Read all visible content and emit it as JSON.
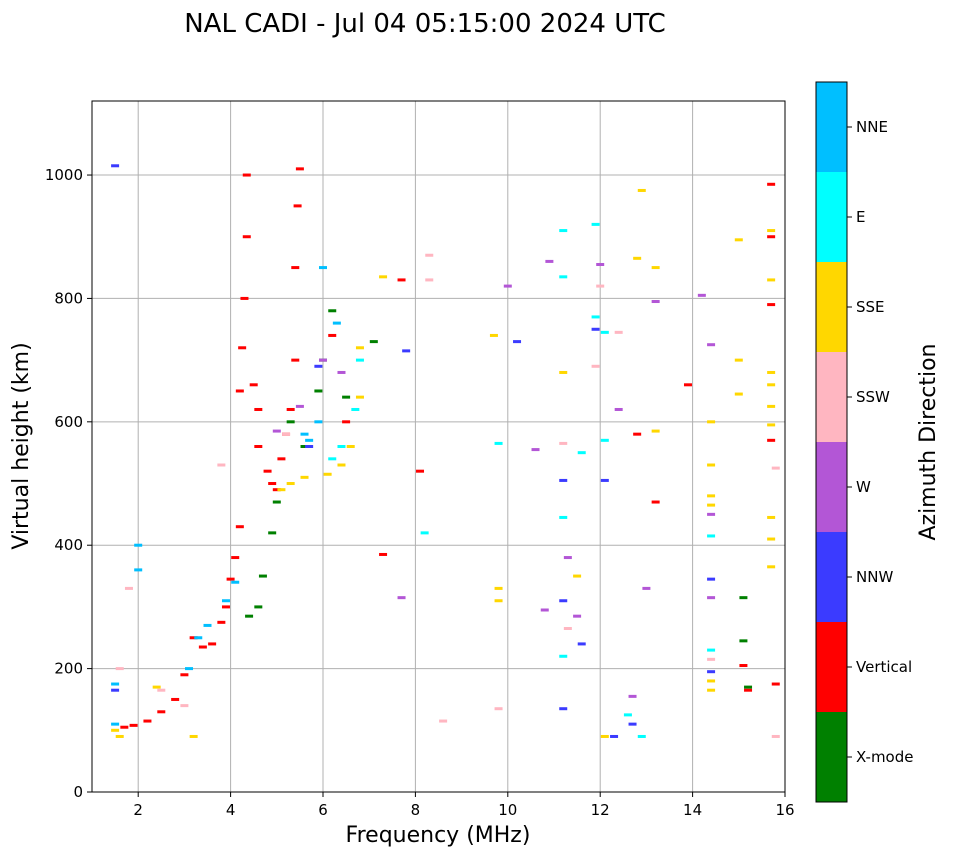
{
  "chart_data": {
    "type": "scatter",
    "title": "NAL CADI - Jul 04 05:15:00 2024 UTC",
    "xlabel": "Frequency (MHz)",
    "ylabel": "Virtual height (km)",
    "xlim": [
      1,
      16
    ],
    "ylim": [
      0,
      1120
    ],
    "xticks": [
      2,
      4,
      6,
      8,
      10,
      12,
      14,
      16
    ],
    "yticks": [
      0,
      200,
      400,
      600,
      800,
      1000
    ],
    "grid": true,
    "colorbar": {
      "label": "Azimuth Direction",
      "categories": [
        {
          "name": "X-mode",
          "color": "#008000"
        },
        {
          "name": "Vertical",
          "color": "#ff0000"
        },
        {
          "name": "NNW",
          "color": "#3b3bff"
        },
        {
          "name": "W",
          "color": "#b356d6"
        },
        {
          "name": "SSW",
          "color": "#ffb6c1"
        },
        {
          "name": "SSE",
          "color": "#ffd700"
        },
        {
          "name": "E",
          "color": "#00ffff"
        },
        {
          "name": "NNE",
          "color": "#00bfff"
        }
      ]
    },
    "series": [
      {
        "name": "Vertical",
        "points": [
          [
            1.7,
            105
          ],
          [
            1.9,
            108
          ],
          [
            2.2,
            115
          ],
          [
            2.5,
            130
          ],
          [
            2.8,
            150
          ],
          [
            3.0,
            190
          ],
          [
            3.2,
            250
          ],
          [
            3.4,
            235
          ],
          [
            3.6,
            240
          ],
          [
            3.8,
            275
          ],
          [
            3.9,
            300
          ],
          [
            4.0,
            345
          ],
          [
            4.1,
            380
          ],
          [
            4.2,
            430
          ],
          [
            4.2,
            650
          ],
          [
            4.25,
            720
          ],
          [
            4.3,
            800
          ],
          [
            4.35,
            900
          ],
          [
            4.35,
            1000
          ],
          [
            4.5,
            660
          ],
          [
            4.6,
            620
          ],
          [
            4.6,
            560
          ],
          [
            4.8,
            520
          ],
          [
            4.9,
            500
          ],
          [
            5.0,
            490
          ],
          [
            5.1,
            540
          ],
          [
            5.2,
            580
          ],
          [
            5.3,
            620
          ],
          [
            5.4,
            700
          ],
          [
            5.4,
            850
          ],
          [
            5.45,
            950
          ],
          [
            5.5,
            1010
          ],
          [
            6.2,
            740
          ],
          [
            6.5,
            600
          ],
          [
            7.3,
            385
          ],
          [
            7.7,
            830
          ],
          [
            8.1,
            520
          ],
          [
            12.8,
            580
          ],
          [
            13.2,
            470
          ],
          [
            13.9,
            660
          ],
          [
            15.1,
            205
          ],
          [
            15.2,
            165
          ],
          [
            15.7,
            985
          ],
          [
            15.7,
            900
          ],
          [
            15.7,
            790
          ],
          [
            15.7,
            570
          ],
          [
            15.8,
            175
          ]
        ]
      },
      {
        "name": "X-mode",
        "points": [
          [
            4.4,
            285
          ],
          [
            4.6,
            300
          ],
          [
            4.7,
            350
          ],
          [
            4.9,
            420
          ],
          [
            5.0,
            470
          ],
          [
            5.3,
            600
          ],
          [
            5.6,
            560
          ],
          [
            5.9,
            650
          ],
          [
            6.0,
            700
          ],
          [
            6.2,
            780
          ],
          [
            6.5,
            640
          ],
          [
            7.1,
            730
          ],
          [
            15.1,
            315
          ],
          [
            15.1,
            245
          ],
          [
            15.2,
            170
          ]
        ]
      },
      {
        "name": "NNE",
        "points": [
          [
            1.5,
            175
          ],
          [
            1.5,
            110
          ],
          [
            2.0,
            400
          ],
          [
            2.0,
            360
          ],
          [
            3.1,
            200
          ],
          [
            3.3,
            250
          ],
          [
            3.5,
            270
          ],
          [
            3.9,
            310
          ],
          [
            4.1,
            340
          ],
          [
            5.6,
            580
          ],
          [
            5.7,
            570
          ],
          [
            5.9,
            600
          ],
          [
            6.0,
            850
          ],
          [
            6.3,
            760
          ]
        ]
      },
      {
        "name": "E",
        "points": [
          [
            6.2,
            540
          ],
          [
            6.4,
            560
          ],
          [
            6.7,
            620
          ],
          [
            6.8,
            700
          ],
          [
            8.2,
            420
          ],
          [
            9.8,
            565
          ],
          [
            11.2,
            445
          ],
          [
            11.2,
            220
          ],
          [
            11.2,
            910
          ],
          [
            11.2,
            835
          ],
          [
            11.6,
            550
          ],
          [
            11.9,
            770
          ],
          [
            11.9,
            920
          ],
          [
            12.1,
            745
          ],
          [
            12.1,
            570
          ],
          [
            12.6,
            125
          ],
          [
            12.9,
            90
          ],
          [
            14.4,
            415
          ],
          [
            14.4,
            230
          ]
        ]
      },
      {
        "name": "SSE",
        "points": [
          [
            1.5,
            100
          ],
          [
            1.6,
            90
          ],
          [
            2.4,
            170
          ],
          [
            3.2,
            90
          ],
          [
            5.1,
            490
          ],
          [
            5.3,
            500
          ],
          [
            5.6,
            510
          ],
          [
            6.1,
            515
          ],
          [
            6.4,
            530
          ],
          [
            6.6,
            560
          ],
          [
            6.8,
            640
          ],
          [
            6.8,
            720
          ],
          [
            7.3,
            835
          ],
          [
            9.7,
            740
          ],
          [
            9.8,
            330
          ],
          [
            9.8,
            310
          ],
          [
            11.2,
            680
          ],
          [
            11.5,
            350
          ],
          [
            12.1,
            90
          ],
          [
            12.8,
            865
          ],
          [
            12.9,
            975
          ],
          [
            13.2,
            850
          ],
          [
            13.2,
            585
          ],
          [
            14.4,
            600
          ],
          [
            14.4,
            530
          ],
          [
            14.4,
            480
          ],
          [
            14.4,
            465
          ],
          [
            14.4,
            180
          ],
          [
            14.4,
            165
          ],
          [
            15.0,
            895
          ],
          [
            15.0,
            700
          ],
          [
            15.0,
            645
          ],
          [
            15.7,
            910
          ],
          [
            15.7,
            830
          ],
          [
            15.7,
            680
          ],
          [
            15.7,
            660
          ],
          [
            15.7,
            625
          ],
          [
            15.7,
            595
          ],
          [
            15.7,
            445
          ],
          [
            15.7,
            410
          ],
          [
            15.7,
            365
          ]
        ]
      },
      {
        "name": "SSW",
        "points": [
          [
            1.6,
            200
          ],
          [
            1.8,
            330
          ],
          [
            2.5,
            165
          ],
          [
            3.0,
            140
          ],
          [
            3.8,
            530
          ],
          [
            5.2,
            580
          ],
          [
            8.3,
            870
          ],
          [
            8.3,
            830
          ],
          [
            8.6,
            115
          ],
          [
            9.8,
            135
          ],
          [
            11.2,
            565
          ],
          [
            11.3,
            265
          ],
          [
            11.9,
            690
          ],
          [
            12.0,
            820
          ],
          [
            12.4,
            745
          ],
          [
            14.4,
            215
          ],
          [
            15.8,
            525
          ],
          [
            15.8,
            90
          ]
        ]
      },
      {
        "name": "W",
        "points": [
          [
            5.0,
            585
          ],
          [
            5.5,
            625
          ],
          [
            6.0,
            700
          ],
          [
            6.4,
            680
          ],
          [
            7.7,
            315
          ],
          [
            10.0,
            820
          ],
          [
            10.6,
            555
          ],
          [
            10.8,
            295
          ],
          [
            10.9,
            860
          ],
          [
            11.3,
            380
          ],
          [
            11.5,
            285
          ],
          [
            12.0,
            855
          ],
          [
            12.4,
            620
          ],
          [
            12.7,
            155
          ],
          [
            13.0,
            330
          ],
          [
            13.2,
            795
          ],
          [
            14.2,
            805
          ],
          [
            14.4,
            725
          ],
          [
            14.4,
            450
          ],
          [
            14.4,
            315
          ]
        ]
      },
      {
        "name": "NNW",
        "points": [
          [
            1.5,
            165
          ],
          [
            1.5,
            1015
          ],
          [
            5.7,
            560
          ],
          [
            5.9,
            690
          ],
          [
            7.8,
            715
          ],
          [
            10.2,
            730
          ],
          [
            11.2,
            505
          ],
          [
            11.2,
            310
          ],
          [
            11.2,
            135
          ],
          [
            11.6,
            240
          ],
          [
            11.9,
            750
          ],
          [
            12.1,
            505
          ],
          [
            12.3,
            90
          ],
          [
            12.7,
            110
          ],
          [
            14.4,
            345
          ],
          [
            14.4,
            195
          ]
        ]
      }
    ]
  }
}
